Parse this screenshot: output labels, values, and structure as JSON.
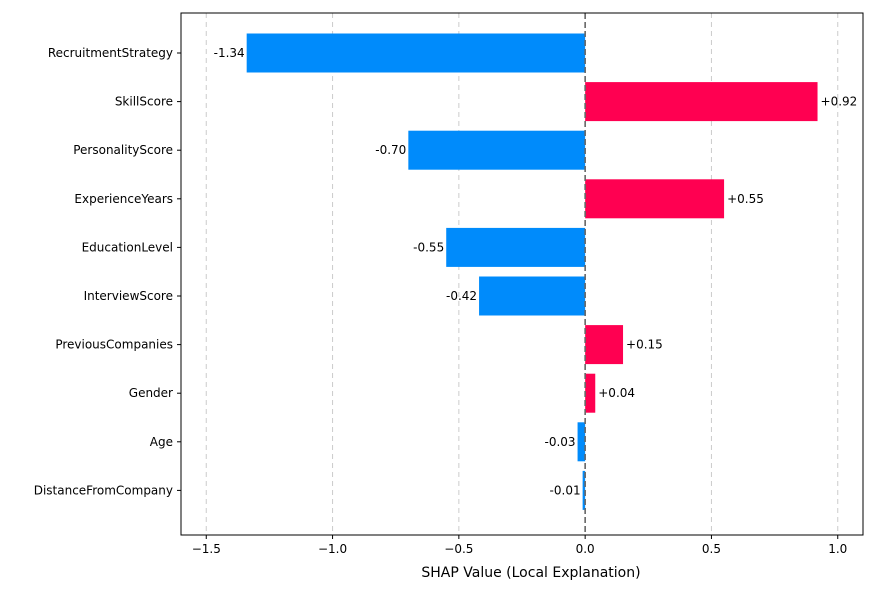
{
  "chart_data": {
    "type": "bar",
    "orientation": "horizontal",
    "title": "",
    "xlabel": "SHAP Value (Local Explanation)",
    "ylabel": "",
    "xlim": [
      -1.6,
      1.1
    ],
    "xticks": [
      -1.5,
      -1.0,
      -0.5,
      0.0,
      0.5,
      1.0
    ],
    "xtick_labels": [
      "−1.5",
      "−1.0",
      "−0.5",
      "0.0",
      "0.5",
      "1.0"
    ],
    "grid": "x-dashed",
    "categories": [
      "RecruitmentStrategy",
      "SkillScore",
      "PersonalityScore",
      "ExperienceYears",
      "EducationLevel",
      "InterviewScore",
      "PreviousCompanies",
      "Gender",
      "Age",
      "DistanceFromCompany"
    ],
    "values": [
      -1.34,
      0.92,
      -0.7,
      0.55,
      -0.55,
      -0.42,
      0.15,
      0.04,
      -0.03,
      -0.01
    ],
    "value_labels": [
      "-1.34",
      "+0.92",
      "-0.70",
      "+0.55",
      "-0.55",
      "-0.42",
      "+0.15",
      "+0.04",
      "-0.03",
      "-0.01"
    ],
    "colors": {
      "positive": "#ff0051",
      "negative": "#008bfb",
      "zero_line": "#666666",
      "grid": "#cccccc"
    }
  }
}
